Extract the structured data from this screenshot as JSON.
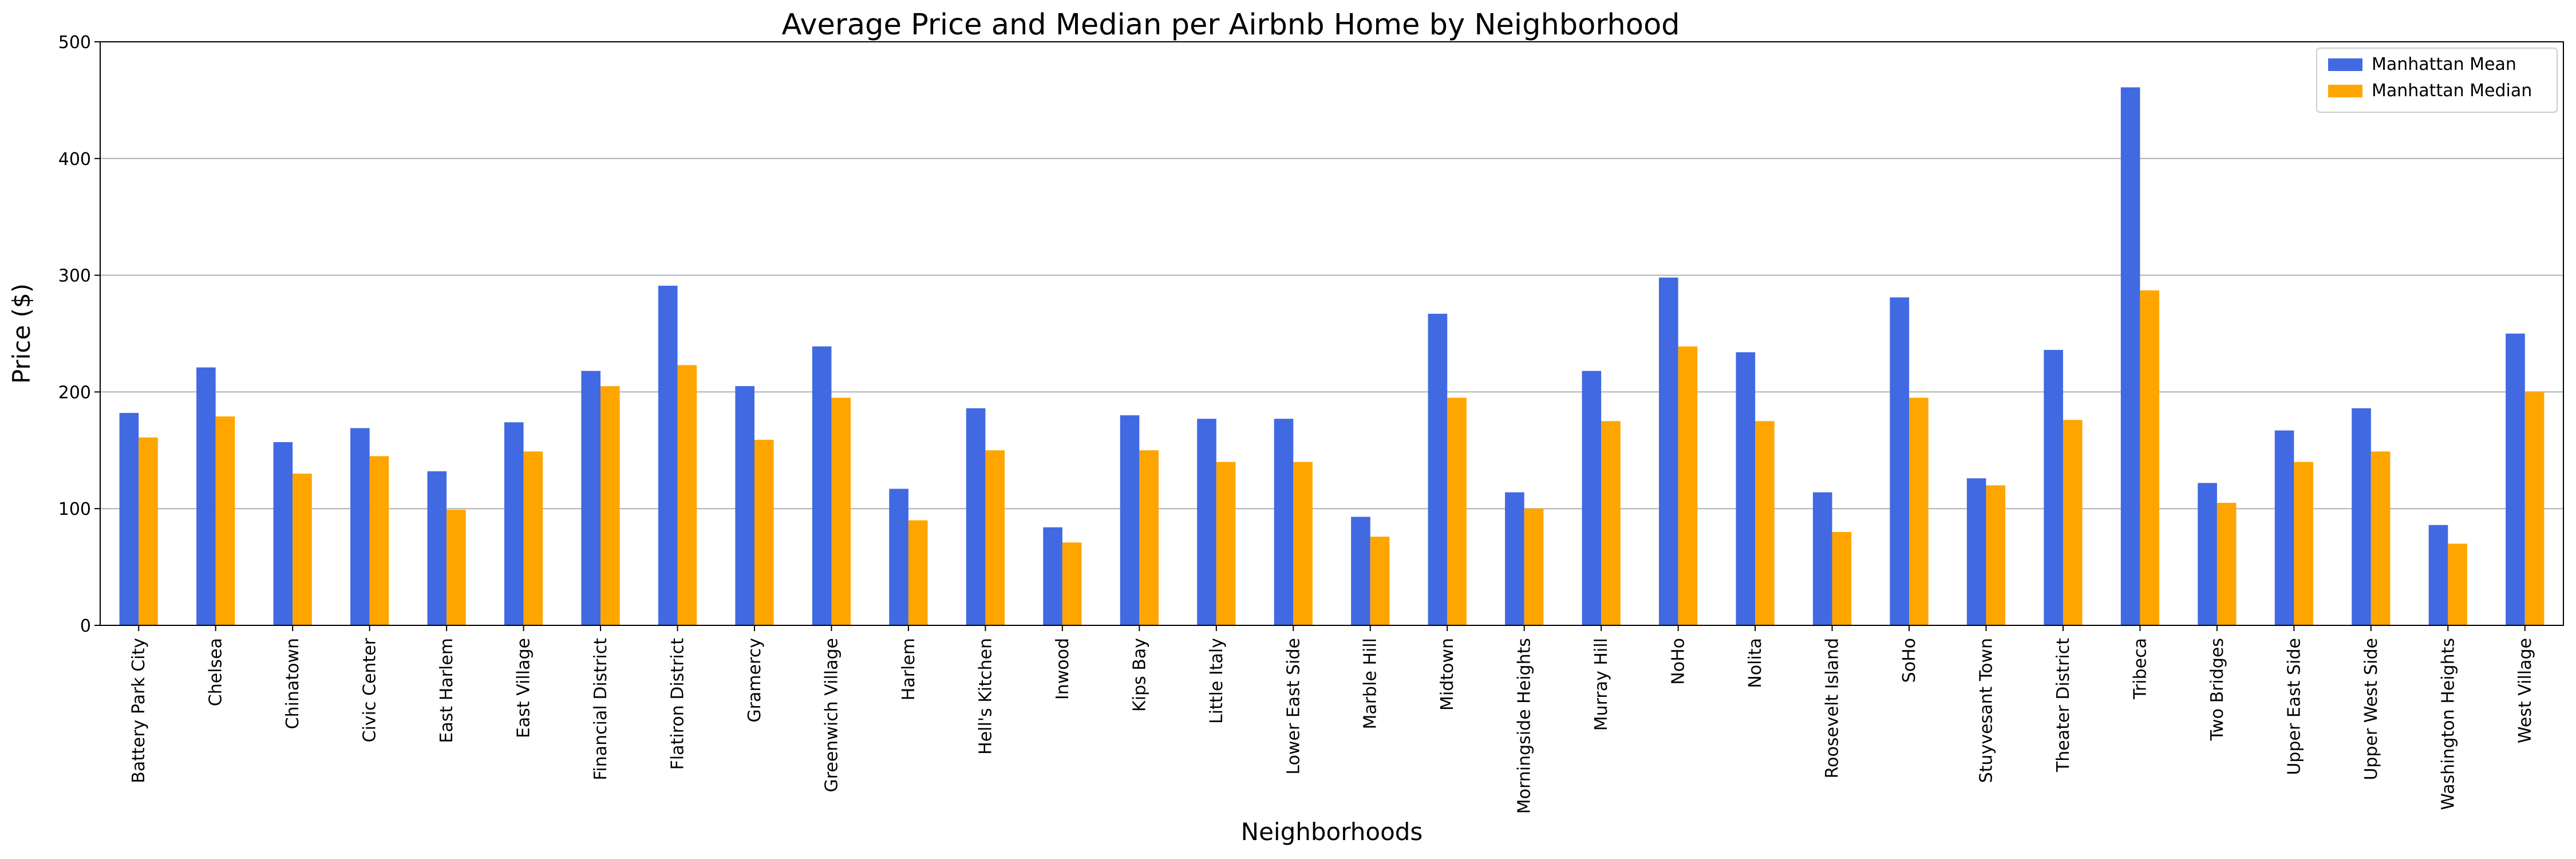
{
  "chart_data": {
    "type": "bar",
    "title": "Average Price and Median per Airbnb Home by Neighborhood",
    "xlabel": "Neighborhoods",
    "ylabel": "Price ($)",
    "ylim": [
      0,
      500
    ],
    "yticks": [
      0,
      100,
      200,
      300,
      400,
      500
    ],
    "grid": "horizontal",
    "legend_position": "top-right",
    "categories": [
      "Battery Park City",
      "Chelsea",
      "Chinatown",
      "Civic Center",
      "East Harlem",
      "East Village",
      "Financial District",
      "Flatiron District",
      "Gramercy",
      "Greenwich Village",
      "Harlem",
      "Hell's Kitchen",
      "Inwood",
      "Kips Bay",
      "Little Italy",
      "Lower East Side",
      "Marble Hill",
      "Midtown",
      "Morningside Heights",
      "Murray Hill",
      "NoHo",
      "Nolita",
      "Roosevelt Island",
      "SoHo",
      "Stuyvesant Town",
      "Theater District",
      "Tribeca",
      "Two Bridges",
      "Upper East Side",
      "Upper West Side",
      "Washington Heights",
      "West Village"
    ],
    "series": [
      {
        "name": "Manhattan Mean",
        "color": "#4169e1",
        "values": [
          182,
          221,
          157,
          169,
          132,
          174,
          218,
          291,
          205,
          239,
          117,
          186,
          84,
          180,
          177,
          177,
          93,
          267,
          114,
          218,
          298,
          234,
          114,
          281,
          126,
          236,
          461,
          122,
          167,
          186,
          86,
          250
        ]
      },
      {
        "name": "Manhattan Median",
        "color": "#ffa500",
        "values": [
          161,
          179,
          130,
          145,
          99,
          149,
          205,
          223,
          159,
          195,
          90,
          150,
          71,
          150,
          140,
          140,
          76,
          195,
          100,
          175,
          239,
          175,
          80,
          195,
          120,
          176,
          287,
          105,
          140,
          149,
          70,
          200
        ]
      }
    ]
  }
}
